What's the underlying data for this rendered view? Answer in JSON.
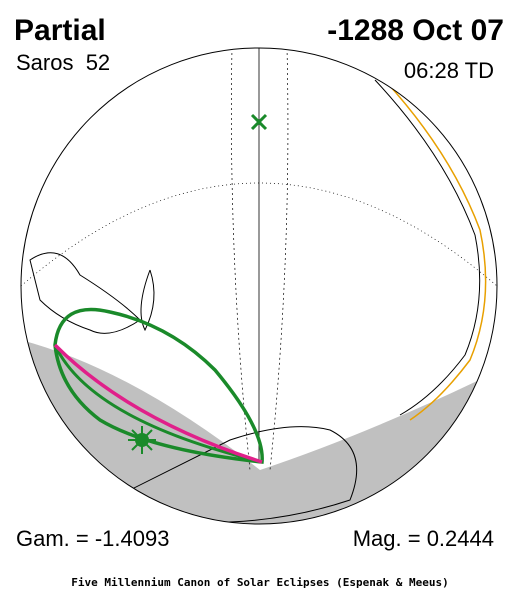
{
  "header": {
    "title": "Partial",
    "date": "-1288 Oct 07",
    "saros": "Saros  52",
    "time": "06:28 TD"
  },
  "footer": {
    "gamma": "Gam. = -1.4093",
    "magnitude": "Mag. = 0.2444",
    "credit": "Five Millennium Canon of Solar Eclipses (Espenak & Meeus)"
  }
}
